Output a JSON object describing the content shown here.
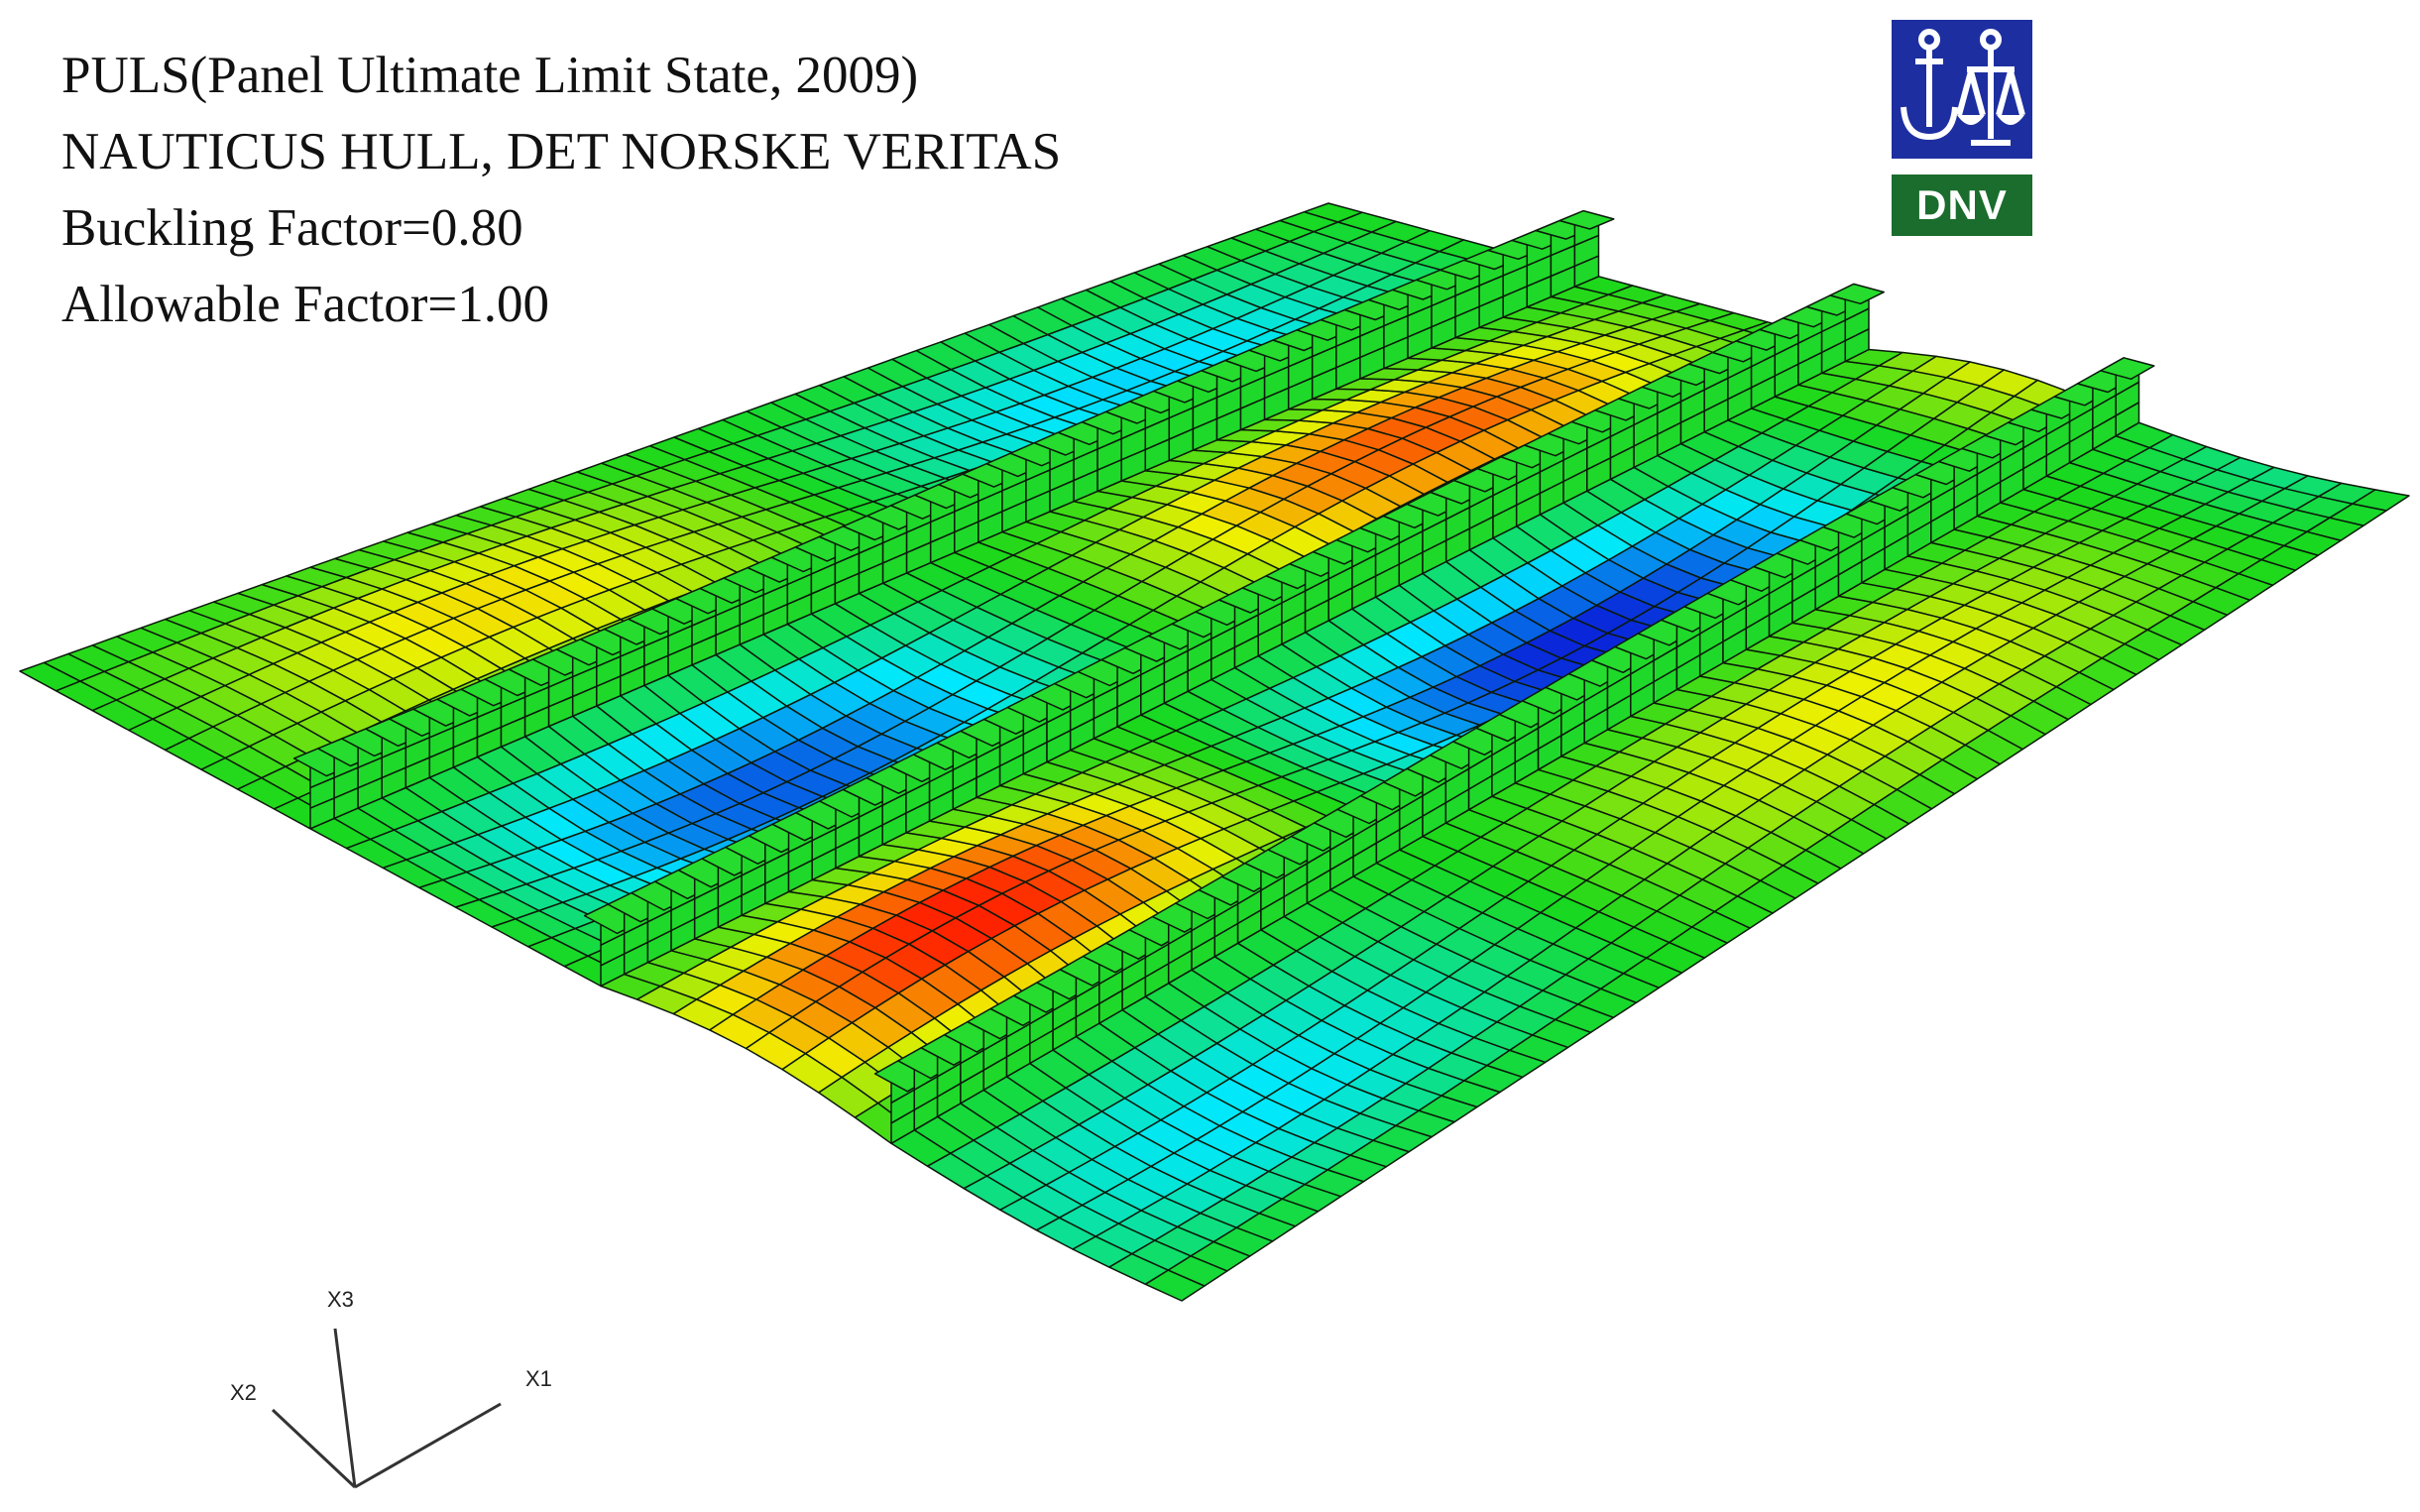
{
  "header": {
    "lines": [
      "PULS(Panel Ultimate Limit State, 2009)",
      "NAUTICUS HULL, DET NORSKE VERITAS",
      "Buckling Factor=0.80",
      "Allowable Factor=1.00"
    ]
  },
  "logo": {
    "text": "DNV",
    "icon": "anchor-and-scales-icon",
    "colors": {
      "top": "#1d2fa0",
      "bottom": "#1a6d2c"
    }
  },
  "axes": {
    "x1": "X1",
    "x2": "X2",
    "x3": "X3"
  },
  "colormap": [
    "#0a1ed8",
    "#00e8ff",
    "#19d81c",
    "#f0f000",
    "#ff1a00"
  ],
  "mesh": {
    "line_color": "#0b1a0b"
  }
}
